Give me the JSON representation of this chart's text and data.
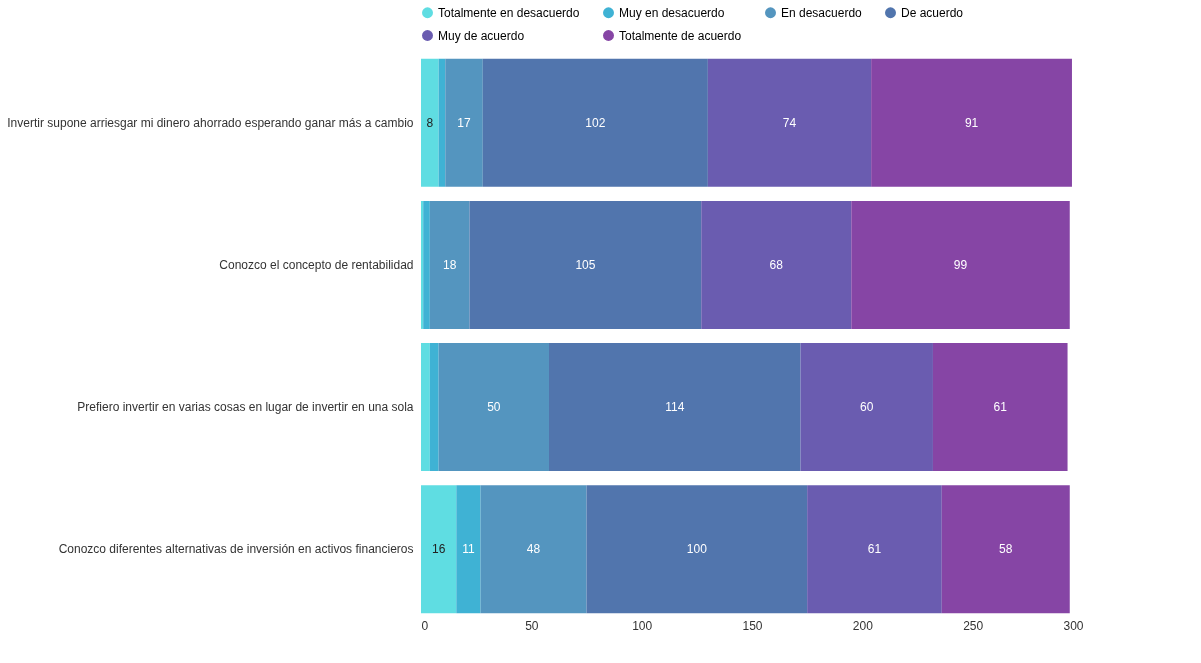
{
  "chart_data": {
    "type": "bar",
    "orientation": "horizontal",
    "stacked": true,
    "legend": "top",
    "grid": false,
    "categories": [
      "Invertir supone arriesgar mi dinero ahorrado esperando ganar más a cambio",
      "Conozco el concepto de rentabilidad",
      "Prefiero invertir en varias cosas en lugar de invertir en una sola",
      "Conozco diferentes alternativas de inversión en activos financieros"
    ],
    "xlim": [
      0,
      300
    ],
    "xticks": [
      0,
      50,
      100,
      150,
      200,
      250,
      300
    ],
    "series": [
      {
        "name": "Totalmente en desacuerdo",
        "color": "#5fdde2",
        "values": [
          8,
          1,
          4,
          16
        ],
        "value_labels": [
          "8",
          null,
          null,
          "16"
        ]
      },
      {
        "name": "Muy en desacuerdo",
        "color": "#3fb2d4",
        "values": [
          3,
          3,
          4,
          11
        ],
        "value_labels": [
          null,
          null,
          null,
          "11"
        ]
      },
      {
        "name": "En desacuerdo",
        "color": "#5495bf",
        "values": [
          17,
          18,
          50,
          48
        ],
        "value_labels": [
          "17",
          "18",
          "50",
          "48"
        ]
      },
      {
        "name": "De acuerdo",
        "color": "#5175ad",
        "values": [
          102,
          105,
          114,
          100
        ],
        "value_labels": [
          "102",
          "105",
          "114",
          "100"
        ]
      },
      {
        "name": "Muy de acuerdo",
        "color": "#6a5cb0",
        "values": [
          74,
          68,
          60,
          61
        ],
        "value_labels": [
          "74",
          "68",
          "60",
          "61"
        ]
      },
      {
        "name": "Totalmente de acuerdo",
        "color": "#8645a5",
        "values": [
          91,
          99,
          61,
          58
        ],
        "value_labels": [
          "91",
          "99",
          "61",
          "58"
        ]
      }
    ]
  }
}
